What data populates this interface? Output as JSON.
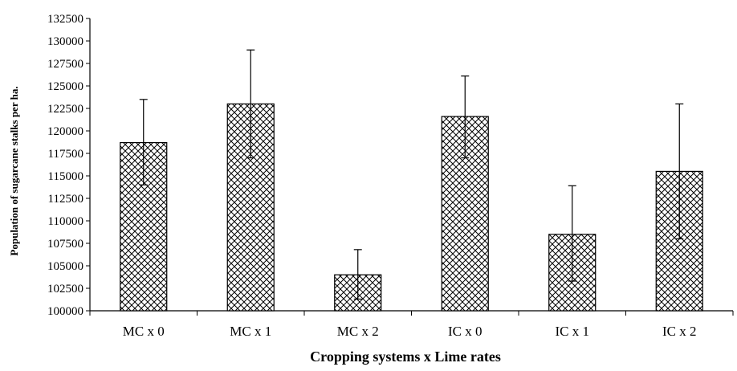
{
  "chart_data": {
    "type": "bar",
    "title": "",
    "xlabel": "Cropping systems x Lime rates",
    "ylabel": "Population of sugarcane stalks per ha.",
    "categories": [
      "MC x 0",
      "MC x 1",
      "MC x 2",
      "IC x 0",
      "IC x 1",
      "IC x 2"
    ],
    "values": [
      118700,
      123000,
      104000,
      121600,
      108500,
      115500
    ],
    "error_low": [
      114000,
      117000,
      101300,
      117000,
      103300,
      108000
    ],
    "error_high": [
      123500,
      129000,
      106800,
      126100,
      113900,
      123000
    ],
    "ylim": [
      100000,
      132500
    ],
    "yticks": [
      "100000",
      "102500",
      "105000",
      "107500",
      "110000",
      "112500",
      "115000",
      "117500",
      "120000",
      "122500",
      "125000",
      "127500",
      "130000",
      "132500"
    ],
    "grid": false,
    "legend": "none",
    "bar_pattern": "cross-hatch",
    "colors": {
      "bar_fill": "#ffffff",
      "hatch": "#000000",
      "axis": "#000000"
    }
  }
}
